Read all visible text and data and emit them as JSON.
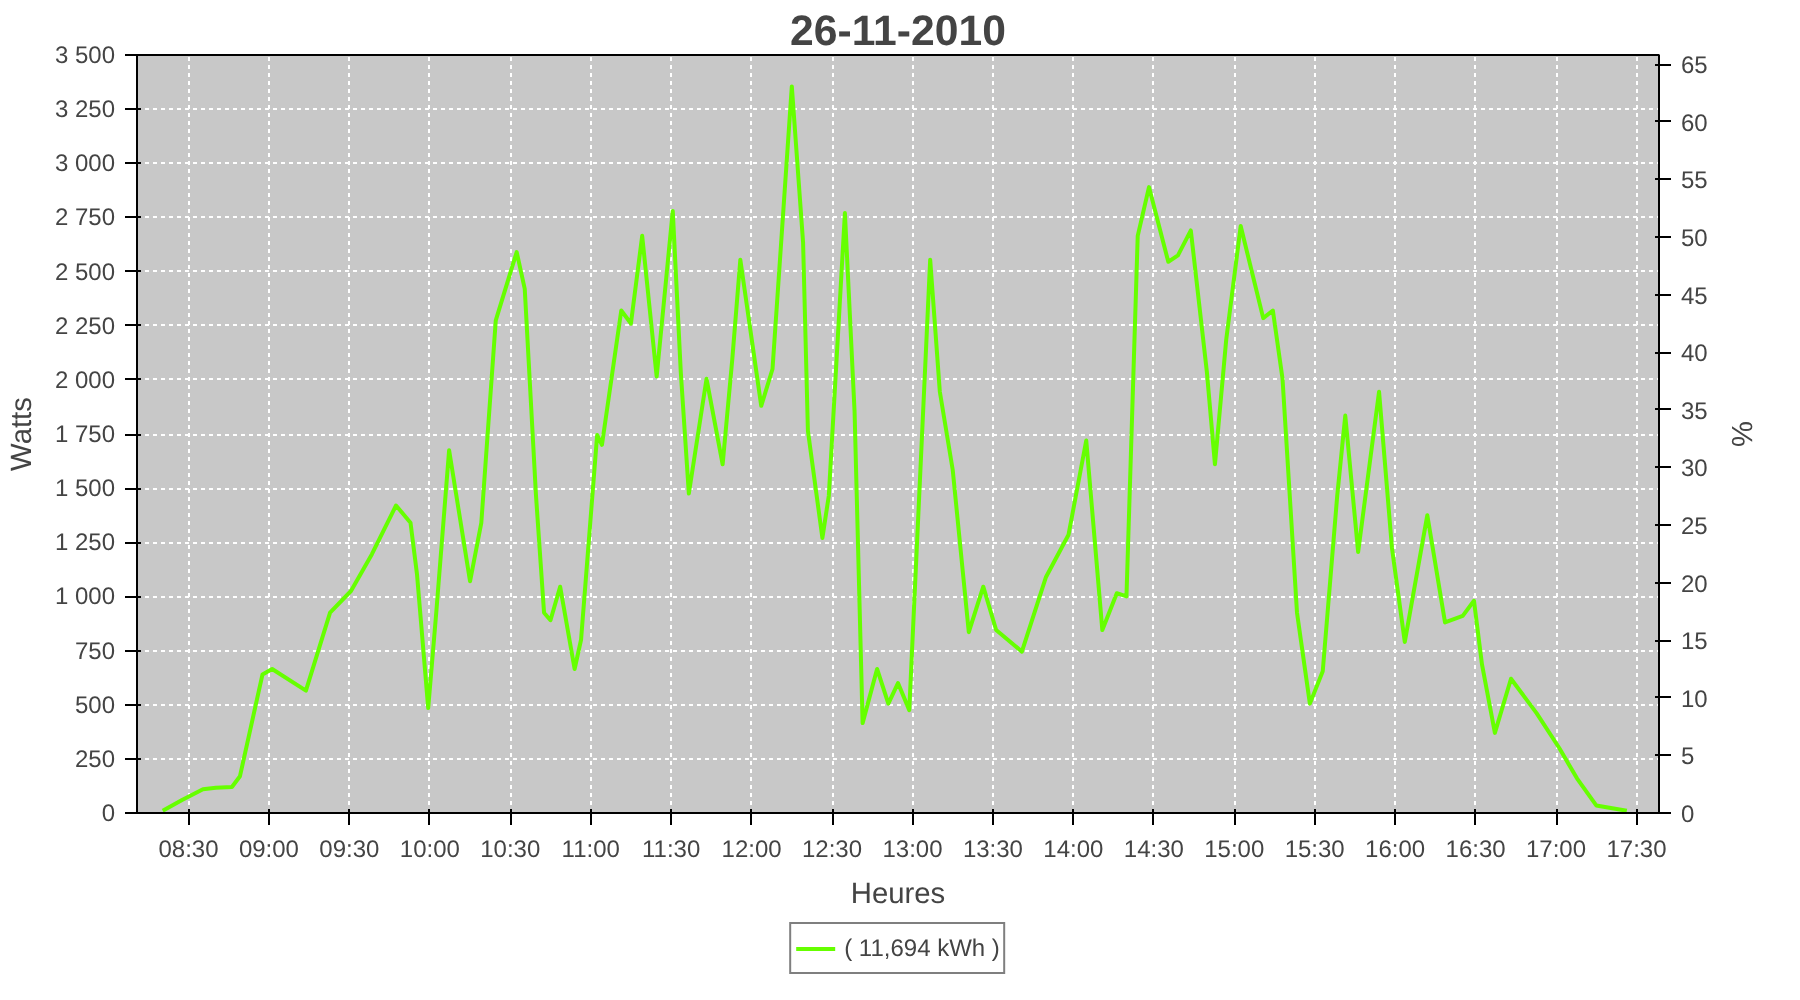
{
  "chart_data": {
    "type": "line",
    "title": "26-11-2010",
    "xlabel": "Heures",
    "ylabel": "Watts",
    "y2label": "%",
    "x": [
      8.34,
      8.46,
      8.59,
      8.67,
      8.77,
      8.82,
      8.96,
      9.02,
      9.23,
      9.38,
      9.51,
      9.64,
      9.79,
      9.88,
      9.92,
      9.99,
      10.04,
      10.12,
      10.25,
      10.32,
      10.41,
      10.54,
      10.59,
      10.66,
      10.71,
      10.75,
      10.81,
      10.9,
      10.94,
      11.04,
      11.07,
      11.19,
      11.25,
      11.32,
      11.41,
      11.51,
      11.56,
      11.61,
      11.72,
      11.82,
      11.88,
      11.93,
      12.06,
      12.13,
      12.25,
      12.32,
      12.35,
      12.44,
      12.48,
      12.58,
      12.64,
      12.69,
      12.78,
      12.85,
      12.91,
      12.98,
      13.11,
      13.17,
      13.25,
      13.35,
      13.44,
      13.52,
      13.68,
      13.83,
      13.97,
      14.08,
      14.18,
      14.27,
      14.33,
      14.4,
      14.47,
      14.59,
      14.65,
      14.73,
      14.83,
      14.88,
      14.95,
      15.04,
      15.18,
      15.24,
      15.3,
      15.39,
      15.47,
      15.55,
      15.64,
      15.69,
      15.77,
      15.9,
      15.98,
      16.06,
      16.2,
      16.31,
      16.42,
      16.49,
      16.54,
      16.62,
      16.72,
      16.88,
      17.02,
      17.13,
      17.25,
      17.44
    ],
    "series": [
      {
        "name": "( 11,694 kWh )",
        "color": "#66ff00",
        "values": [
          10,
          60,
          110,
          117,
          120,
          170,
          640,
          665,
          565,
          925,
          1025,
          1195,
          1420,
          1340,
          1105,
          485,
          925,
          1675,
          1070,
          1340,
          2275,
          2590,
          2420,
          1465,
          925,
          890,
          1045,
          665,
          800,
          1745,
          1700,
          2320,
          2260,
          2665,
          2015,
          2780,
          2035,
          1475,
          2005,
          1610,
          2095,
          2555,
          1880,
          2050,
          3355,
          2635,
          1765,
          1270,
          1465,
          2770,
          1855,
          415,
          665,
          505,
          600,
          475,
          2555,
          1945,
          1585,
          835,
          1045,
          845,
          745,
          1090,
          1285,
          1720,
          845,
          1015,
          1000,
          2665,
          2890,
          2545,
          2575,
          2690,
          2035,
          1610,
          2185,
          2710,
          2285,
          2320,
          2005,
          925,
          505,
          655,
          1465,
          1835,
          1205,
          1945,
          1225,
          790,
          1375,
          880,
          910,
          980,
          685,
          370,
          620,
          460,
          300,
          160,
          35,
          10
        ]
      }
    ],
    "xlim": [
      8.18,
      17.64
    ],
    "xticks": [
      {
        "value": 8.5,
        "label": "08:30"
      },
      {
        "value": 9,
        "label": "09:00"
      },
      {
        "value": 9.5,
        "label": "09:30"
      },
      {
        "value": 10,
        "label": "10:00"
      },
      {
        "value": 10.5,
        "label": "10:30"
      },
      {
        "value": 11,
        "label": "11:00"
      },
      {
        "value": 11.5,
        "label": "11:30"
      },
      {
        "value": 12,
        "label": "12:00"
      },
      {
        "value": 12.5,
        "label": "12:30"
      },
      {
        "value": 13,
        "label": "13:00"
      },
      {
        "value": 13.5,
        "label": "13:30"
      },
      {
        "value": 14,
        "label": "14:00"
      },
      {
        "value": 14.5,
        "label": "14:30"
      },
      {
        "value": 15,
        "label": "15:00"
      },
      {
        "value": 15.5,
        "label": "15:30"
      },
      {
        "value": 16,
        "label": "16:00"
      },
      {
        "value": 16.5,
        "label": "16:30"
      },
      {
        "value": 17,
        "label": "17:00"
      },
      {
        "value": 17.5,
        "label": "17:30"
      }
    ],
    "ylim": [
      0,
      3500
    ],
    "yticks": [
      0,
      250,
      500,
      750,
      {
        "value": 1000,
        "label": "1 000"
      },
      {
        "value": 1250,
        "label": "1 250"
      },
      {
        "value": 1500,
        "label": "1 500"
      },
      {
        "value": 1750,
        "label": "1 750"
      },
      {
        "value": 2000,
        "label": "2 000"
      },
      {
        "value": 2250,
        "label": "2 250"
      },
      {
        "value": 2500,
        "label": "2 500"
      },
      {
        "value": 2750,
        "label": "2 750"
      },
      {
        "value": 3000,
        "label": "3 000"
      },
      {
        "value": 3250,
        "label": "3 250"
      },
      {
        "value": 3500,
        "label": "3 500"
      }
    ],
    "y2lim": [
      0,
      65.8
    ],
    "y2ticks": [
      0,
      5,
      10,
      15,
      20,
      25,
      30,
      35,
      40,
      45,
      50,
      55,
      60,
      65
    ],
    "grid": true,
    "legend": "bottom",
    "line_style": "solid",
    "marker": "none"
  }
}
